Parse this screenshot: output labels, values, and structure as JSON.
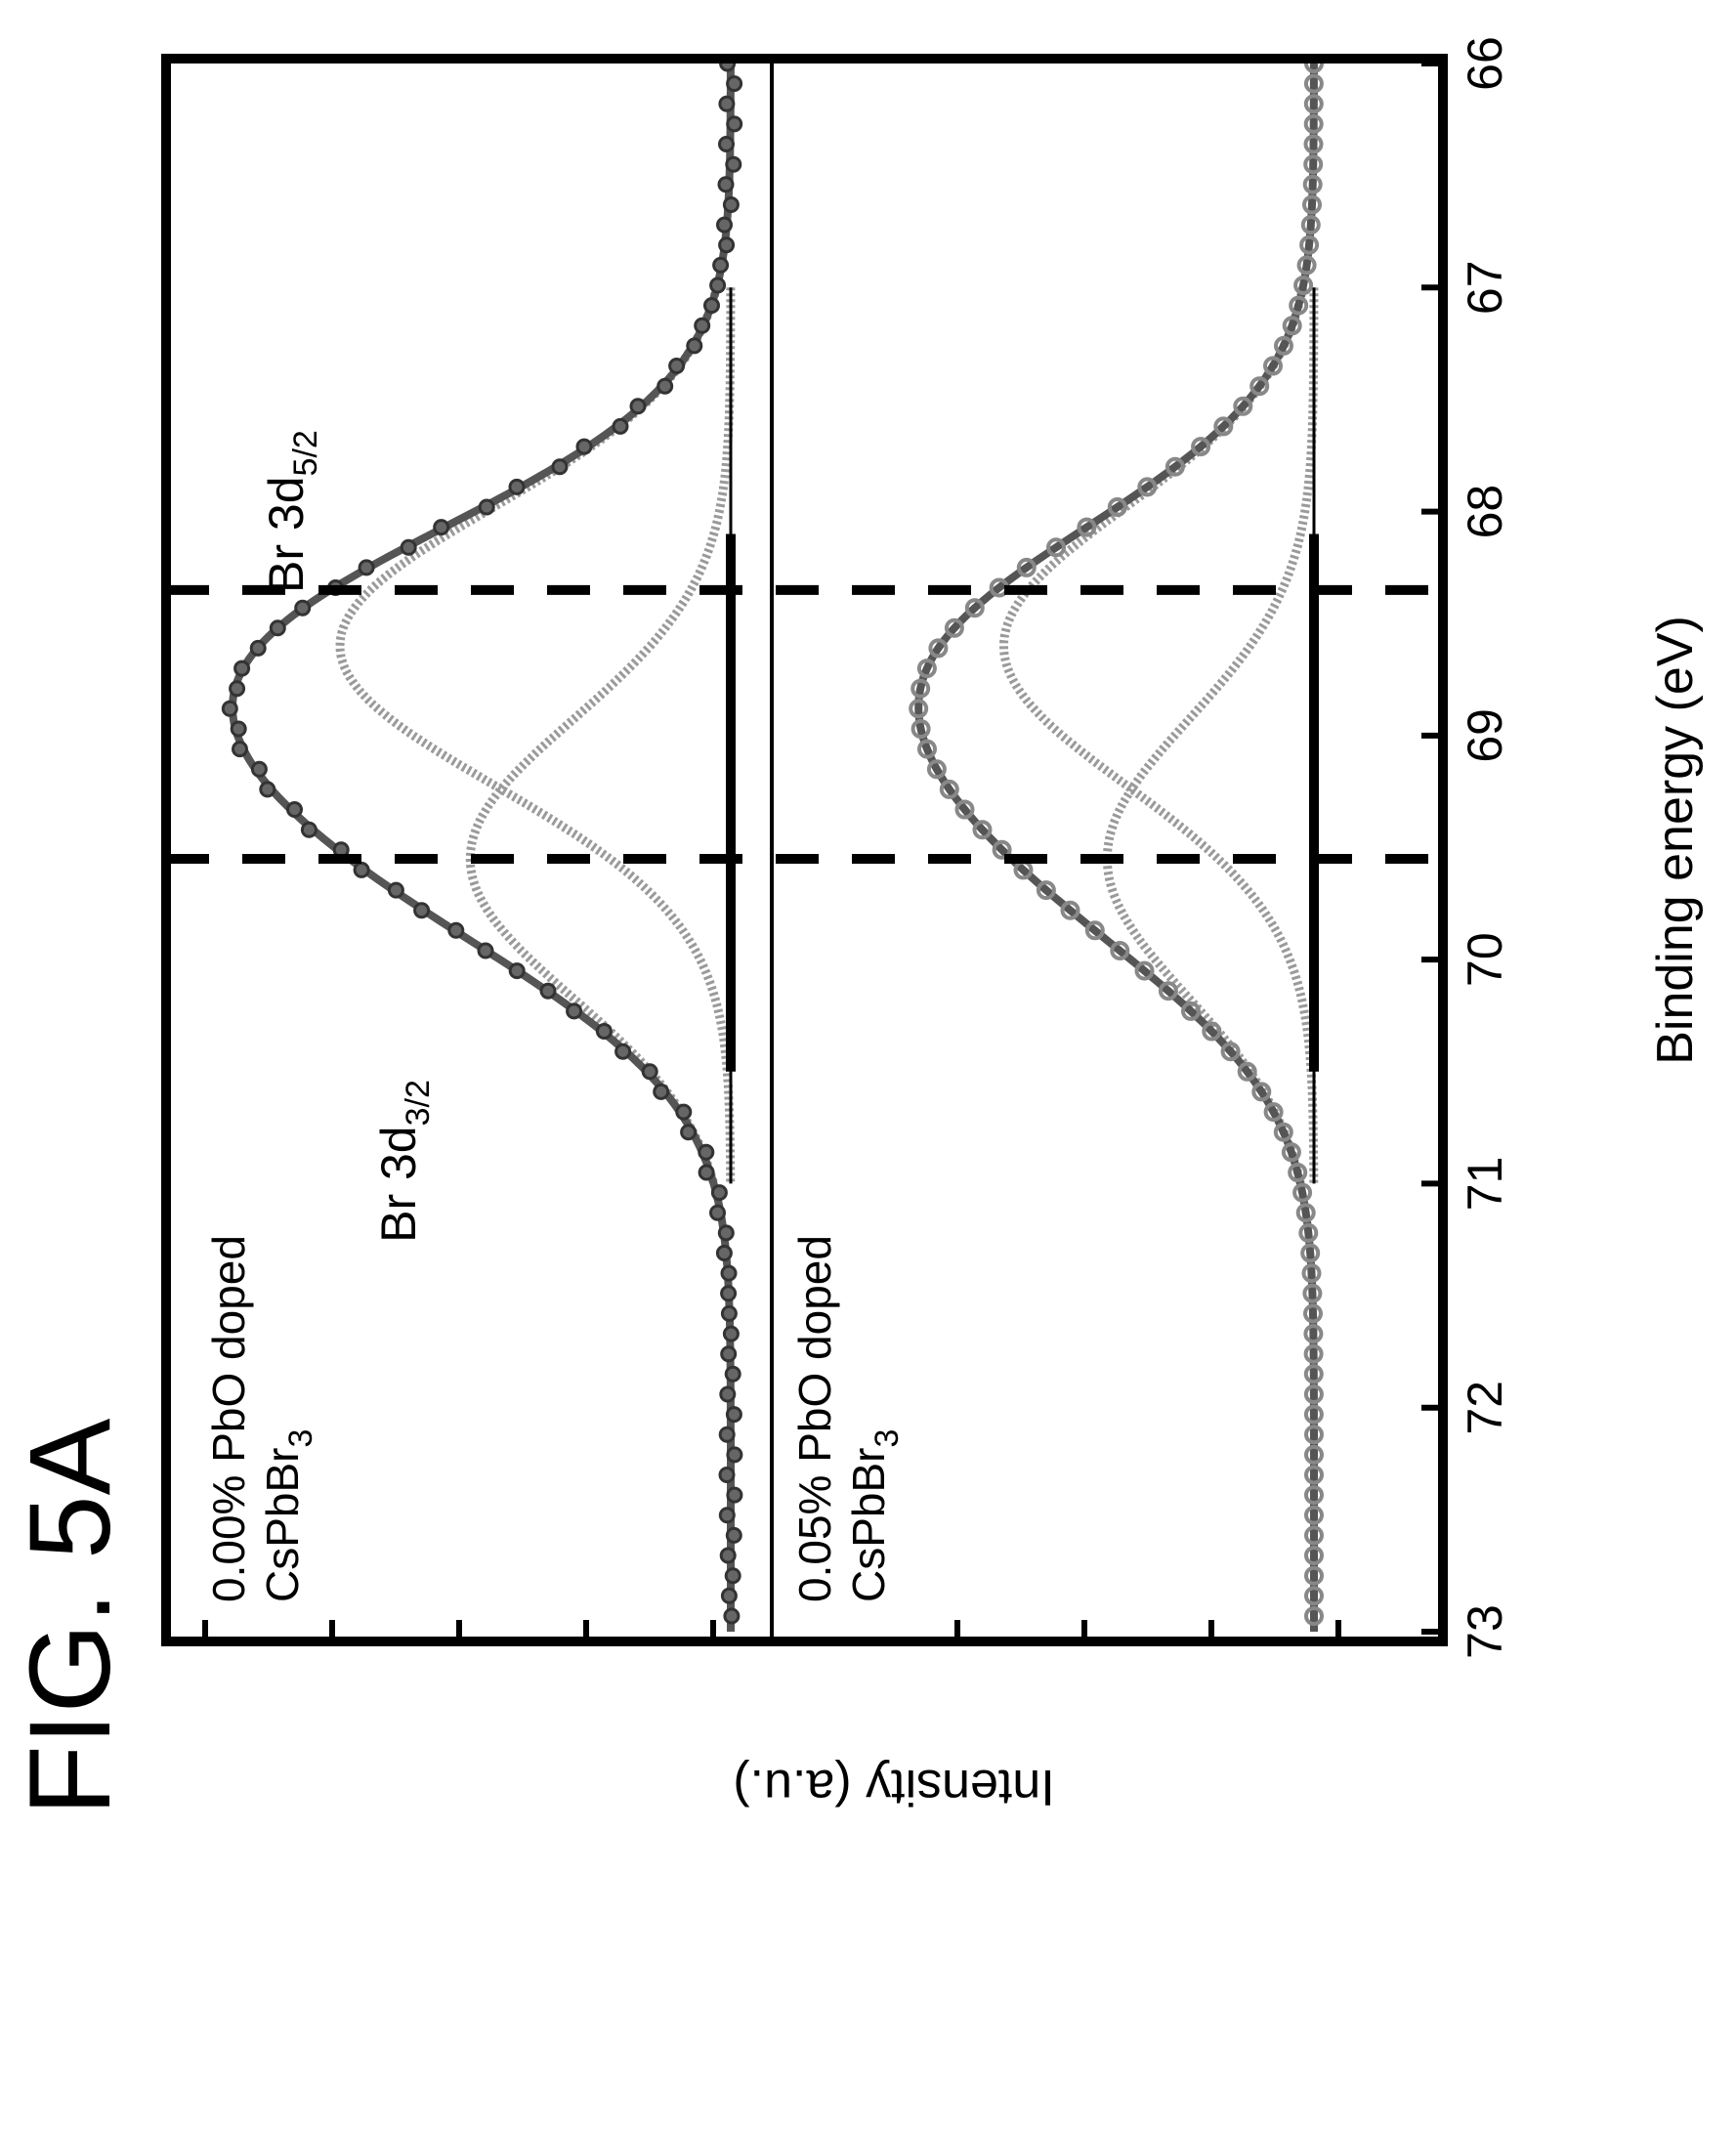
{
  "figure": {
    "title": "FIG. 5A"
  },
  "chart_data": {
    "type": "line",
    "orientation": "rotated-90-clockwise",
    "xlabel": "Binding energy (eV)",
    "ylabel": "Intensity (a.u.)",
    "x_reversed": true,
    "xlim": [
      73,
      66
    ],
    "x_ticks": [
      73,
      72,
      71,
      70,
      69,
      68,
      67,
      66
    ],
    "x_tick_labels": [
      "73",
      "72",
      "71",
      "70",
      "69",
      "68",
      "67",
      "66"
    ],
    "reference_lines_x": [
      69.55,
      68.35
    ],
    "peak_labels": [
      {
        "main": "Br 3d",
        "sub": "3/2",
        "x": 70.9
      },
      {
        "main": "Br 3d",
        "sub": "5/2",
        "x": 68.0
      }
    ],
    "components": [
      {
        "center": 69.55,
        "sigma": 0.62,
        "rel_amp": 0.42
      },
      {
        "center": 68.6,
        "sigma": 0.62,
        "rel_amp": 0.63
      }
    ],
    "panels": [
      {
        "label_line1": "0.00% PbO doped",
        "label_line2_main": "CsPbBr",
        "label_line2_sub": "3",
        "baseline": 0.0,
        "peak_height": 1.0,
        "fit_range": [
          71.0,
          67.0
        ],
        "marker": "filled"
      },
      {
        "label_line1": "0.05% PbO doped",
        "label_line2_main": "CsPbBr",
        "label_line2_sub": "3",
        "baseline": 0.0,
        "peak_height": 0.88,
        "fit_range": [
          71.0,
          67.0
        ],
        "marker": "open"
      }
    ]
  }
}
